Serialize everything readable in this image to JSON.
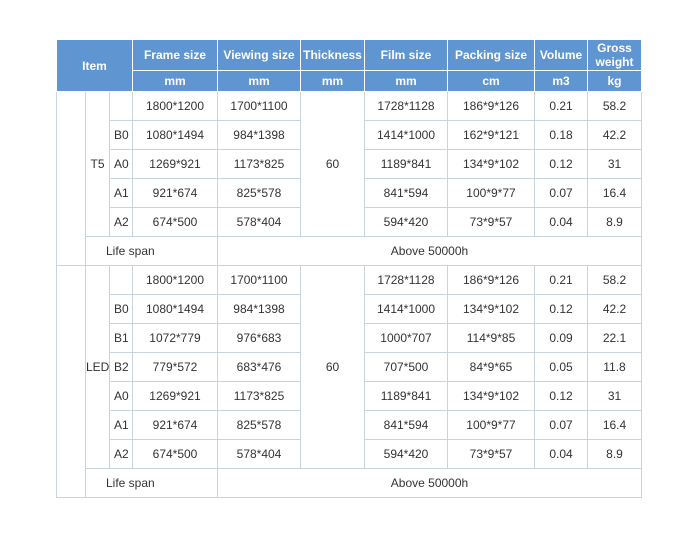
{
  "header": {
    "item": "Item",
    "columns": [
      {
        "label": "Frame size",
        "unit": "mm"
      },
      {
        "label": "Viewing size",
        "unit": "mm"
      },
      {
        "label": "Thickness",
        "unit": "mm"
      },
      {
        "label": "Film size",
        "unit": "mm"
      },
      {
        "label": "Packing size",
        "unit": "cm"
      },
      {
        "label": "Volume",
        "unit": "m3"
      },
      {
        "label": "Gross weight",
        "unit": "kg"
      }
    ]
  },
  "groups": [
    {
      "name": "T5",
      "thickness": "60",
      "rows": [
        {
          "size": "",
          "frame": "1800*1200",
          "viewing": "1700*1100",
          "film": "1728*1128",
          "packing": "186*9*126",
          "volume": "0.21",
          "weight": "58.2"
        },
        {
          "size": "B0",
          "frame": "1080*1494",
          "viewing": "984*1398",
          "film": "1414*1000",
          "packing": "162*9*121",
          "volume": "0.18",
          "weight": "42.2"
        },
        {
          "size": "A0",
          "frame": "1269*921",
          "viewing": "1173*825",
          "film": "1189*841",
          "packing": "134*9*102",
          "volume": "0.12",
          "weight": "31"
        },
        {
          "size": "A1",
          "frame": "921*674",
          "viewing": "825*578",
          "film": "841*594",
          "packing": "100*9*77",
          "volume": "0.07",
          "weight": "16.4"
        },
        {
          "size": "A2",
          "frame": "674*500",
          "viewing": "578*404",
          "film": "594*420",
          "packing": "73*9*57",
          "volume": "0.04",
          "weight": "8.9"
        }
      ],
      "life_label": "Life span",
      "life_value": "Above 50000h"
    },
    {
      "name": "LED",
      "thickness": "60",
      "rows": [
        {
          "size": "",
          "frame": "1800*1200",
          "viewing": "1700*1100",
          "film": "1728*1128",
          "packing": "186*9*126",
          "volume": "0.21",
          "weight": "58.2"
        },
        {
          "size": "B0",
          "frame": "1080*1494",
          "viewing": "984*1398",
          "film": "1414*1000",
          "packing": "134*9*102",
          "volume": "0.12",
          "weight": "42.2"
        },
        {
          "size": "B1",
          "frame": "1072*779",
          "viewing": "976*683",
          "film": "1000*707",
          "packing": "114*9*85",
          "volume": "0.09",
          "weight": "22.1"
        },
        {
          "size": "B2",
          "frame": "779*572",
          "viewing": "683*476",
          "film": "707*500",
          "packing": "84*9*65",
          "volume": "0.05",
          "weight": "11.8"
        },
        {
          "size": "A0",
          "frame": "1269*921",
          "viewing": "1173*825",
          "film": "1189*841",
          "packing": "134*9*102",
          "volume": "0.12",
          "weight": "31"
        },
        {
          "size": "A1",
          "frame": "921*674",
          "viewing": "825*578",
          "film": "841*594",
          "packing": "100*9*77",
          "volume": "0.07",
          "weight": "16.4"
        },
        {
          "size": "A2",
          "frame": "674*500",
          "viewing": "578*404",
          "film": "594*420",
          "packing": "73*9*57",
          "volume": "0.04",
          "weight": "8.9"
        }
      ],
      "life_label": "Life span",
      "life_value": "Above 50000h"
    }
  ],
  "colors": {
    "header_bg": "#5f95d1",
    "header_text": "#ffffff",
    "border": "#c9d3de",
    "body_text": "#333333"
  }
}
